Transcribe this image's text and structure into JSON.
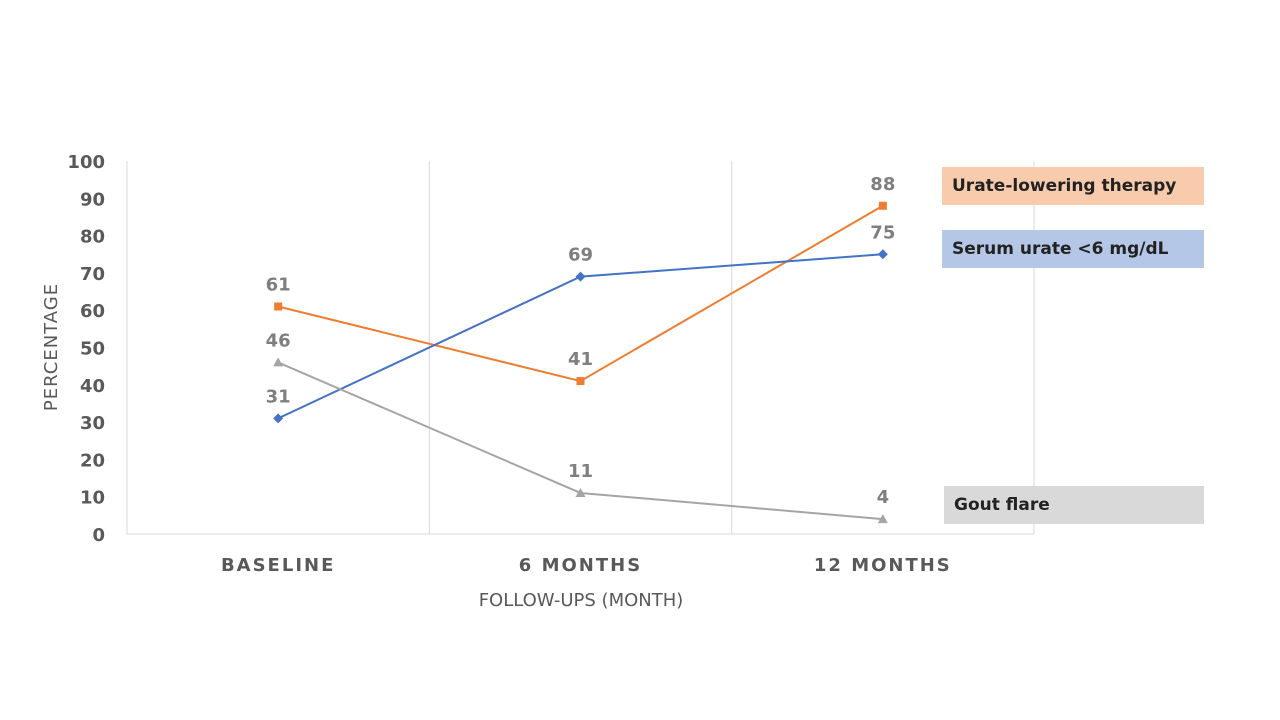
{
  "chart_data": {
    "type": "line",
    "categories": [
      "BASELINE",
      "6 MONTHS",
      "12 MONTHS"
    ],
    "ylim": [
      0,
      100
    ],
    "yticks": [
      0,
      10,
      20,
      30,
      40,
      50,
      60,
      70,
      80,
      90,
      100
    ],
    "xlabel": "FOLLOW-UPS (MONTH)",
    "ylabel": "PERCENTAGE",
    "grid": "vertical",
    "legend_placement": "right",
    "series": [
      {
        "key": "ult",
        "name": "Urate-lowering therapy",
        "values": [
          61,
          41,
          88
        ],
        "color": "#ED7D31",
        "legend_bg": "#F8CBAD",
        "marker": "square"
      },
      {
        "key": "su",
        "name": "Serum urate <6 mg/dL",
        "values": [
          31,
          69,
          75
        ],
        "color": "#4472C4",
        "legend_bg": "#B4C7E7",
        "marker": "diamond"
      },
      {
        "key": "gf",
        "name": "Gout flare",
        "values": [
          46,
          11,
          4
        ],
        "color": "#A5A5A5",
        "legend_bg": "#D9D9D9",
        "marker": "triangle"
      }
    ]
  }
}
